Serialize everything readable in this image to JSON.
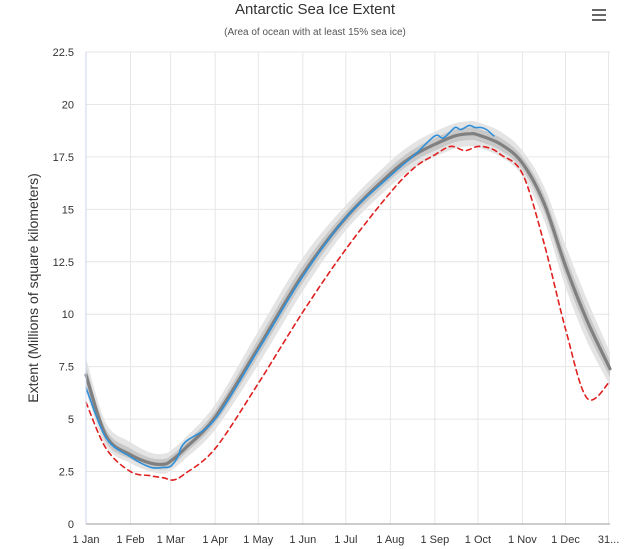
{
  "header": {
    "title": "Antarctic Sea Ice Extent",
    "subtitle": "(Area of ocean with at least 15% sea ice)",
    "menu_icon": "hamburger-menu-icon"
  },
  "colors": {
    "current_year": "#2f8fd8",
    "record_low": "#e02020",
    "median": "#808080",
    "range_inner": "#c8c8c8",
    "range_outer": "#e4e4e4",
    "grid": "#e6e6e6"
  },
  "chart_data": {
    "type": "line",
    "title": "Antarctic Sea Ice Extent",
    "subtitle": "(Area of ocean with at least 15% sea ice)",
    "ylabel": "Extent (Millions of square kilometers)",
    "xlabel": "",
    "ylim": [
      0,
      22.5
    ],
    "y_ticks": [
      "0",
      "2.5",
      "5",
      "7.5",
      "10",
      "12.5",
      "15",
      "17.5",
      "20",
      "22.5"
    ],
    "y_tick_values": [
      0,
      2.5,
      5,
      7.5,
      10,
      12.5,
      15,
      17.5,
      20,
      22.5
    ],
    "xlim": [
      1,
      366
    ],
    "x_ticks": [
      "1 Jan",
      "1 Feb",
      "1 Mar",
      "1 Apr",
      "1 May",
      "1 Jun",
      "1 Jul",
      "1 Aug",
      "1 Sep",
      "1 Oct",
      "1 Nov",
      "1 Dec",
      "31..."
    ],
    "x_tick_days": [
      1,
      32,
      60,
      91,
      121,
      152,
      182,
      213,
      244,
      274,
      305,
      335,
      365
    ],
    "grid": true,
    "legend": "none",
    "series": [
      {
        "style": "solid-thick-gray",
        "x": [
          1,
          15,
          32,
          46,
          55,
          60,
          70,
          91,
          121,
          152,
          182,
          213,
          230,
          244,
          258,
          268,
          274,
          290,
          305,
          320,
          335,
          350,
          366
        ],
        "y": [
          7.1,
          4.2,
          3.3,
          2.9,
          2.85,
          3.0,
          3.6,
          5.1,
          8.4,
          11.9,
          14.6,
          16.7,
          17.6,
          18.1,
          18.5,
          18.6,
          18.55,
          18.1,
          17.2,
          15.3,
          12.3,
          9.7,
          7.4
        ]
      },
      {
        "style": "solid-blue",
        "x": [
          1,
          15,
          32,
          46,
          55,
          60,
          65,
          70,
          91,
          121,
          152,
          182,
          213,
          230,
          244,
          250,
          258,
          262,
          268,
          272,
          276,
          280,
          285
        ],
        "y": [
          6.5,
          4.1,
          3.2,
          2.7,
          2.7,
          2.75,
          3.2,
          3.9,
          5.0,
          8.3,
          11.8,
          14.6,
          16.6,
          17.6,
          18.5,
          18.4,
          18.9,
          18.8,
          19.0,
          18.9,
          18.9,
          18.8,
          18.5
        ]
      },
      {
        "style": "dashed-red",
        "x": [
          1,
          15,
          32,
          46,
          55,
          62,
          70,
          91,
          121,
          152,
          182,
          213,
          230,
          244,
          255,
          265,
          274,
          283,
          290,
          305,
          320,
          335,
          350,
          366
        ],
        "y": [
          5.8,
          3.6,
          2.5,
          2.3,
          2.2,
          2.1,
          2.4,
          3.6,
          6.7,
          10.1,
          13.1,
          15.8,
          17.0,
          17.6,
          18.0,
          17.8,
          18.0,
          17.9,
          17.6,
          16.7,
          13.4,
          9.3,
          6.0,
          6.8
        ]
      }
    ],
    "range_band_inner": {
      "x": [
        1,
        15,
        32,
        46,
        55,
        60,
        70,
        91,
        121,
        152,
        182,
        213,
        230,
        244,
        258,
        268,
        274,
        290,
        305,
        320,
        335,
        350,
        366
      ],
      "low": [
        6.7,
        3.9,
        3.1,
        2.7,
        2.6,
        2.75,
        3.35,
        4.8,
        8.0,
        11.5,
        14.3,
        16.4,
        17.3,
        17.8,
        18.2,
        18.3,
        18.25,
        17.8,
        16.9,
        14.9,
        11.8,
        9.2,
        7.0
      ],
      "high": [
        7.5,
        4.5,
        3.6,
        3.15,
        3.1,
        3.25,
        3.85,
        5.4,
        8.8,
        12.3,
        14.9,
        17.0,
        17.9,
        18.4,
        18.8,
        18.9,
        18.85,
        18.4,
        17.5,
        15.7,
        12.8,
        10.2,
        7.8
      ]
    },
    "range_band_outer": {
      "x": [
        1,
        15,
        32,
        46,
        55,
        60,
        70,
        91,
        121,
        152,
        182,
        213,
        230,
        244,
        258,
        268,
        274,
        290,
        305,
        320,
        335,
        350,
        366
      ],
      "low": [
        6.3,
        3.7,
        2.9,
        2.5,
        2.4,
        2.55,
        3.1,
        4.5,
        7.6,
        11.1,
        14.0,
        16.1,
        17.0,
        17.5,
        17.9,
        18.0,
        17.95,
        17.5,
        16.6,
        14.5,
        11.3,
        8.7,
        6.6
      ],
      "high": [
        7.9,
        4.8,
        3.9,
        3.4,
        3.35,
        3.5,
        4.1,
        5.7,
        9.2,
        12.7,
        15.2,
        17.3,
        18.2,
        18.7,
        19.1,
        19.2,
        19.15,
        18.7,
        17.8,
        16.1,
        13.3,
        10.7,
        8.2
      ]
    }
  }
}
